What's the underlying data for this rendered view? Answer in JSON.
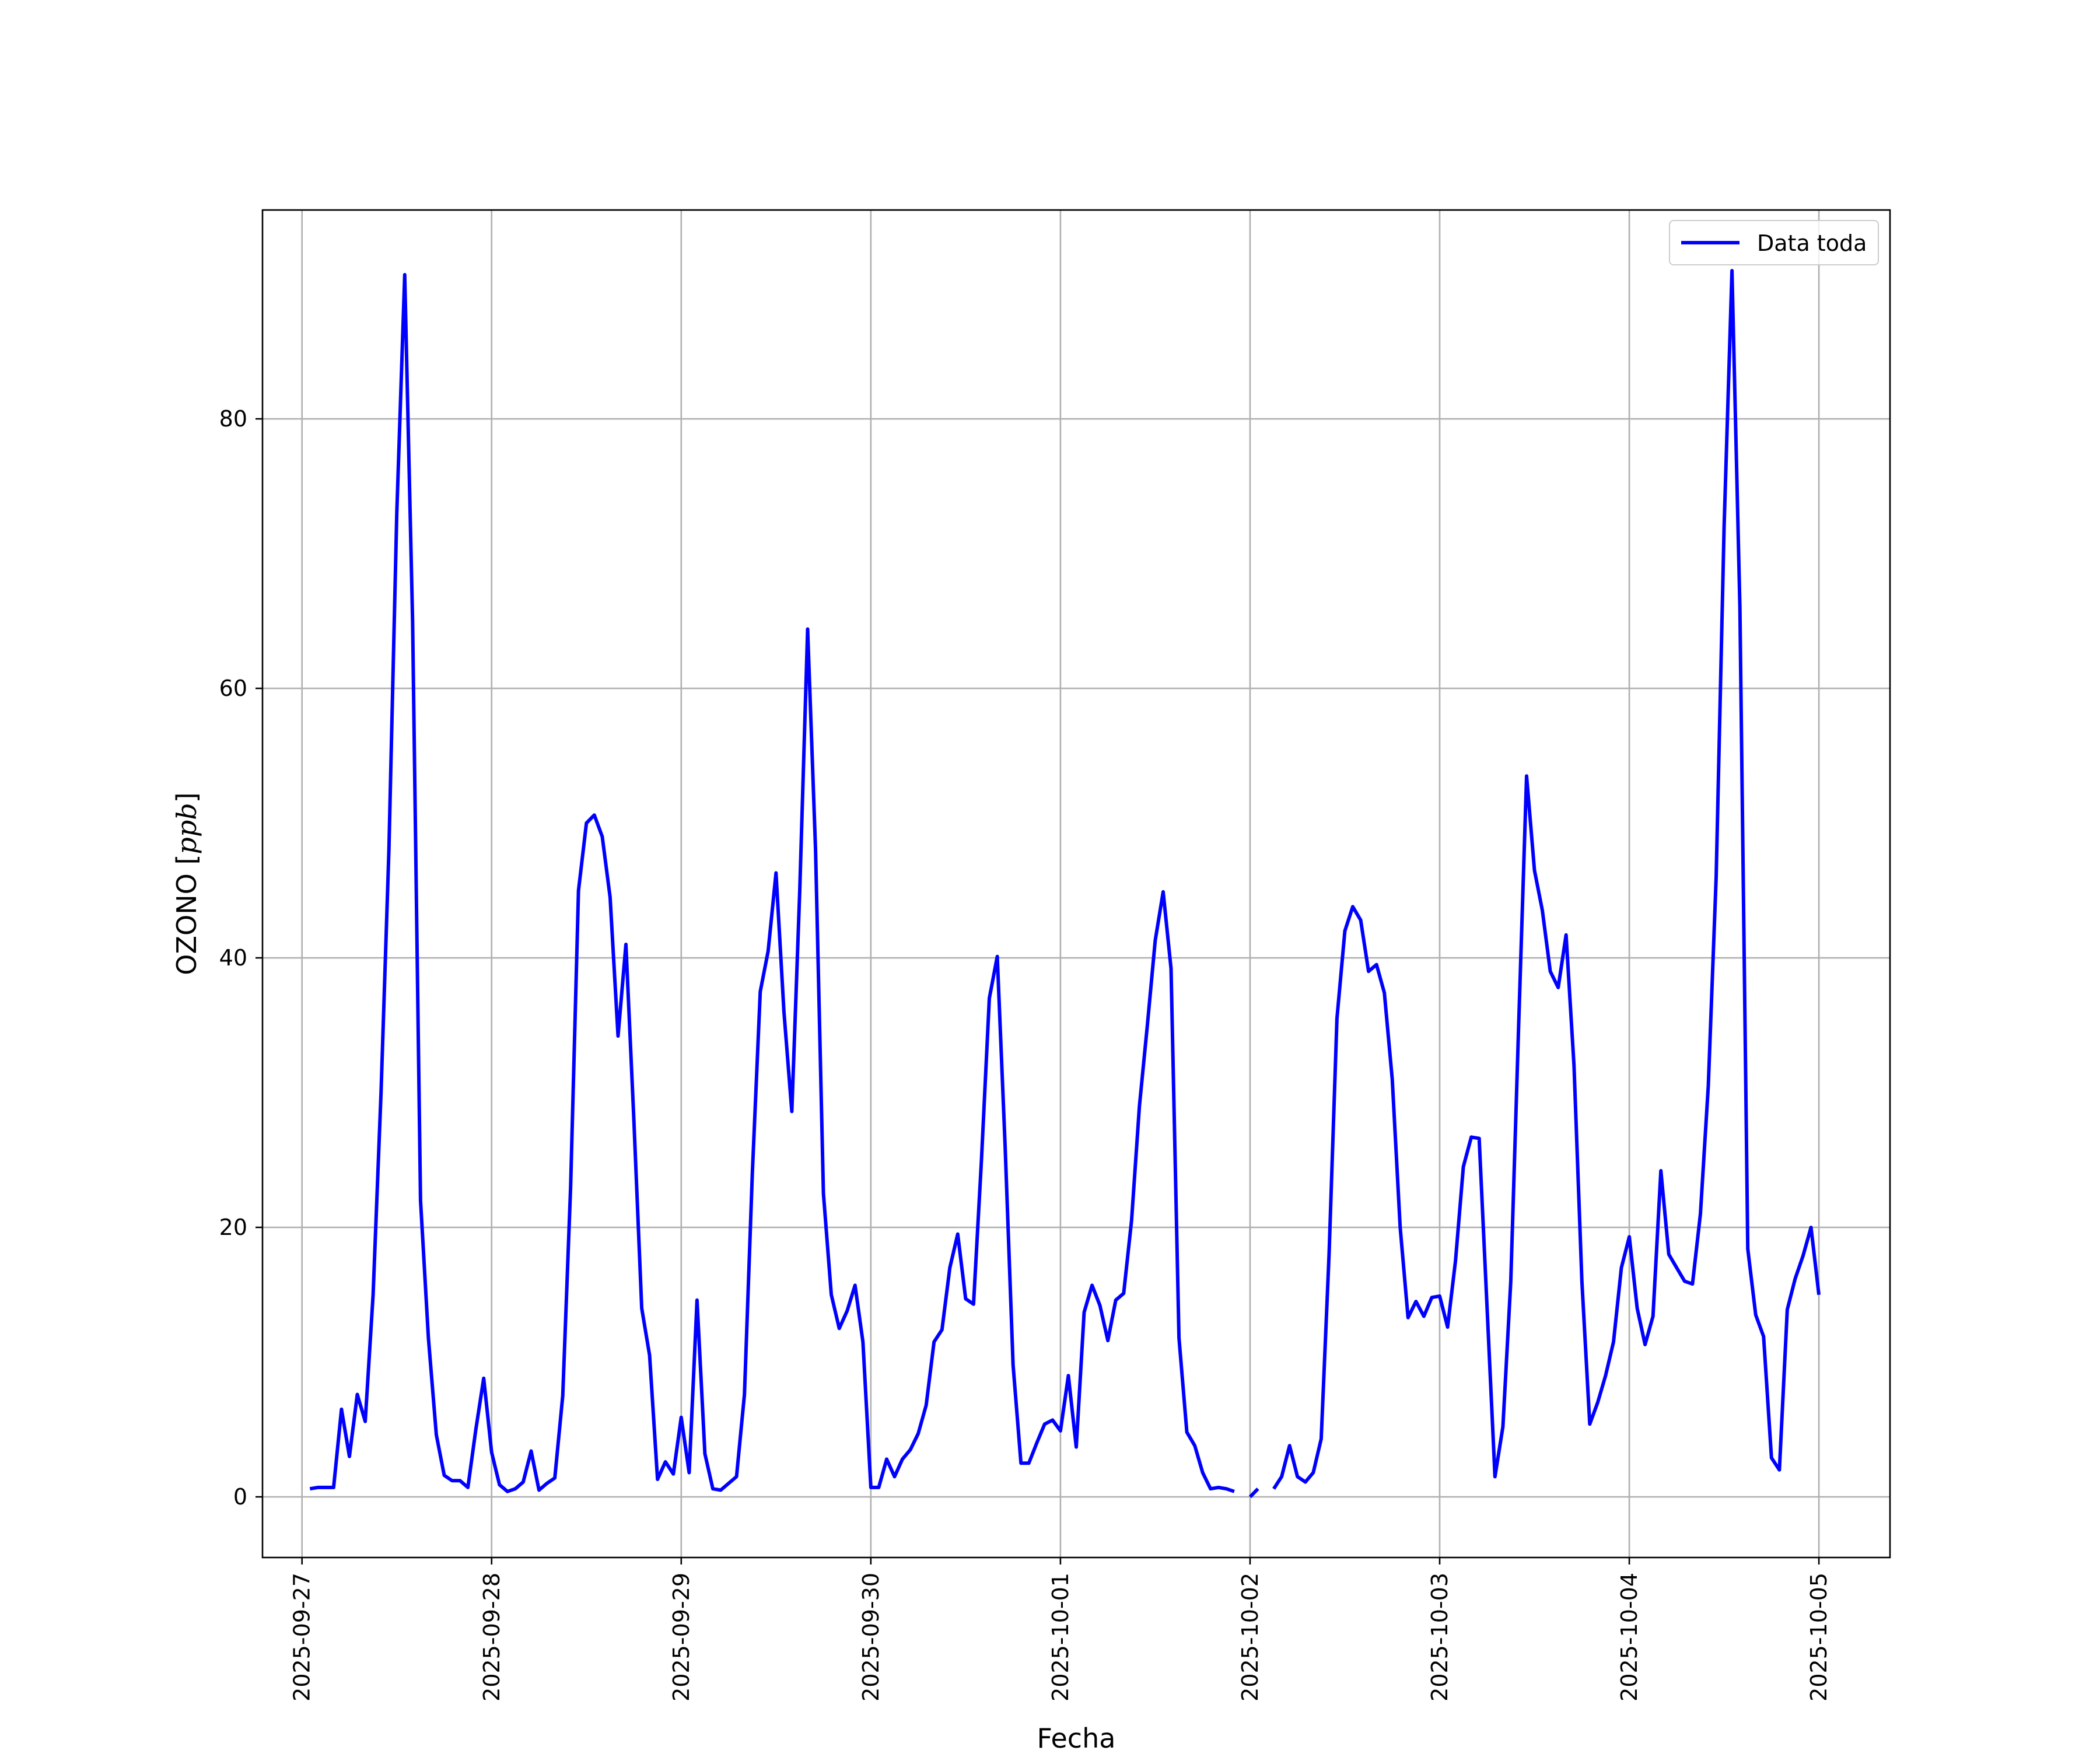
{
  "chart_data": {
    "type": "line",
    "xlabel": "Fecha",
    "ylabel_text": "OZONO [",
    "ylabel_unit": "ppb",
    "ylabel_close": "]",
    "x_ticks": [
      "2025-09-27",
      "2025-09-28",
      "2025-09-29",
      "2025-09-30",
      "2025-10-01",
      "2025-10-02",
      "2025-10-03",
      "2025-10-04",
      "2025-10-05"
    ],
    "y_ticks": [
      0,
      20,
      40,
      60,
      80
    ],
    "xlim": [
      "2025-09-26T19:00",
      "2025-10-05T09:00"
    ],
    "ylim": [
      -4.5,
      95.5
    ],
    "grid": true,
    "legend_position": "top-right",
    "line_color": "#0000ff",
    "series": [
      {
        "name": "Data toda",
        "color": "#0000ff",
        "points": [
          [
            "2025-09-27T01:00",
            0.6
          ],
          [
            "2025-09-27T02:00",
            0.7
          ],
          [
            "2025-09-27T03:00",
            0.7
          ],
          [
            "2025-09-27T04:00",
            0.7
          ],
          [
            "2025-09-27T05:00",
            6.5
          ],
          [
            "2025-09-27T06:00",
            3.0
          ],
          [
            "2025-09-27T07:00",
            7.6
          ],
          [
            "2025-09-27T08:00",
            5.6
          ],
          [
            "2025-09-27T09:00",
            15.0
          ],
          [
            "2025-09-27T10:00",
            30.0
          ],
          [
            "2025-09-27T11:00",
            48.0
          ],
          [
            "2025-09-27T12:00",
            73.0
          ],
          [
            "2025-09-27T13:00",
            90.7
          ],
          [
            "2025-09-27T14:00",
            65.0
          ],
          [
            "2025-09-27T15:00",
            22.0
          ],
          [
            "2025-09-27T16:00",
            11.8
          ],
          [
            "2025-09-27T17:00",
            4.6
          ],
          [
            "2025-09-27T18:00",
            1.6
          ],
          [
            "2025-09-27T19:00",
            1.2
          ],
          [
            "2025-09-27T20:00",
            1.2
          ],
          [
            "2025-09-27T21:00",
            0.7
          ],
          [
            "2025-09-27T22:00",
            5.0
          ],
          [
            "2025-09-27T23:00",
            8.8
          ],
          [
            "2025-09-28T00:00",
            3.3
          ],
          [
            "2025-09-28T01:00",
            0.9
          ],
          [
            "2025-09-28T02:00",
            0.4
          ],
          [
            "2025-09-28T03:00",
            0.6
          ],
          [
            "2025-09-28T04:00",
            1.1
          ],
          [
            "2025-09-28T05:00",
            3.4
          ],
          [
            "2025-09-28T06:00",
            0.5
          ],
          [
            "2025-09-28T07:00",
            1.0
          ],
          [
            "2025-09-28T08:00",
            1.4
          ],
          [
            "2025-09-28T09:00",
            7.5
          ],
          [
            "2025-09-28T10:00",
            23.0
          ],
          [
            "2025-09-28T11:00",
            45.0
          ],
          [
            "2025-09-28T12:00",
            50.0
          ],
          [
            "2025-09-28T13:00",
            50.6
          ],
          [
            "2025-09-28T14:00",
            49.0
          ],
          [
            "2025-09-28T15:00",
            44.5
          ],
          [
            "2025-09-28T16:00",
            34.2
          ],
          [
            "2025-09-28T17:00",
            41.0
          ],
          [
            "2025-09-28T18:00",
            28.0
          ],
          [
            "2025-09-28T19:00",
            14.0
          ],
          [
            "2025-09-28T20:00",
            10.5
          ],
          [
            "2025-09-28T21:00",
            1.3
          ],
          [
            "2025-09-28T22:00",
            2.6
          ],
          [
            "2025-09-28T23:00",
            1.7
          ],
          [
            "2025-09-29T00:00",
            5.9
          ],
          [
            "2025-09-29T01:00",
            1.8
          ],
          [
            "2025-09-29T02:00",
            14.6
          ],
          [
            "2025-09-29T03:00",
            3.2
          ],
          [
            "2025-09-29T04:00",
            0.6
          ],
          [
            "2025-09-29T05:00",
            0.5
          ],
          [
            "2025-09-29T06:00",
            1.0
          ],
          [
            "2025-09-29T07:00",
            1.5
          ],
          [
            "2025-09-29T08:00",
            7.6
          ],
          [
            "2025-09-29T09:00",
            24.0
          ],
          [
            "2025-09-29T10:00",
            37.5
          ],
          [
            "2025-09-29T11:00",
            40.5
          ],
          [
            "2025-09-29T12:00",
            46.3
          ],
          [
            "2025-09-29T13:00",
            36.0
          ],
          [
            "2025-09-29T14:00",
            28.6
          ],
          [
            "2025-09-29T15:00",
            45.0
          ],
          [
            "2025-09-29T16:00",
            64.4
          ],
          [
            "2025-09-29T17:00",
            48.0
          ],
          [
            "2025-09-29T18:00",
            22.5
          ],
          [
            "2025-09-29T19:00",
            15.0
          ],
          [
            "2025-09-29T20:00",
            12.5
          ],
          [
            "2025-09-29T21:00",
            13.8
          ],
          [
            "2025-09-29T22:00",
            15.7
          ],
          [
            "2025-09-29T23:00",
            11.5
          ],
          [
            "2025-09-30T00:00",
            0.7
          ],
          [
            "2025-09-30T01:00",
            0.7
          ],
          [
            "2025-09-30T02:00",
            2.8
          ],
          [
            "2025-09-30T03:00",
            1.5
          ],
          [
            "2025-09-30T04:00",
            2.8
          ],
          [
            "2025-09-30T05:00",
            3.5
          ],
          [
            "2025-09-30T06:00",
            4.7
          ],
          [
            "2025-09-30T07:00",
            6.8
          ],
          [
            "2025-09-30T08:00",
            11.5
          ],
          [
            "2025-09-30T09:00",
            12.4
          ],
          [
            "2025-09-30T10:00",
            17.0
          ],
          [
            "2025-09-30T11:00",
            19.5
          ],
          [
            "2025-09-30T12:00",
            14.7
          ],
          [
            "2025-09-30T13:00",
            14.3
          ],
          [
            "2025-09-30T14:00",
            25.0
          ],
          [
            "2025-09-30T15:00",
            37.0
          ],
          [
            "2025-09-30T16:00",
            40.1
          ],
          [
            "2025-09-30T17:00",
            26.0
          ],
          [
            "2025-09-30T18:00",
            9.8
          ],
          [
            "2025-09-30T19:00",
            2.5
          ],
          [
            "2025-09-30T20:00",
            2.5
          ],
          [
            "2025-09-30T21:00",
            4.0
          ],
          [
            "2025-09-30T22:00",
            5.4
          ],
          [
            "2025-09-30T23:00",
            5.7
          ],
          [
            "2025-10-01T00:00",
            4.9
          ],
          [
            "2025-10-01T01:00",
            9.0
          ],
          [
            "2025-10-01T02:00",
            3.7
          ],
          [
            "2025-10-01T03:00",
            13.7
          ],
          [
            "2025-10-01T04:00",
            15.7
          ],
          [
            "2025-10-01T05:00",
            14.2
          ],
          [
            "2025-10-01T06:00",
            11.6
          ],
          [
            "2025-10-01T07:00",
            14.6
          ],
          [
            "2025-10-01T08:00",
            15.1
          ],
          [
            "2025-10-01T09:00",
            20.5
          ],
          [
            "2025-10-01T10:00",
            29.0
          ],
          [
            "2025-10-01T11:00",
            35.0
          ],
          [
            "2025-10-01T12:00",
            41.3
          ],
          [
            "2025-10-01T13:00",
            44.9
          ],
          [
            "2025-10-01T14:00",
            39.2
          ],
          [
            "2025-10-01T15:00",
            11.8
          ],
          [
            "2025-10-01T16:00",
            4.8
          ],
          [
            "2025-10-01T17:00",
            3.8
          ],
          [
            "2025-10-01T18:00",
            1.8
          ],
          [
            "2025-10-01T19:00",
            0.6
          ],
          [
            "2025-10-01T20:00",
            0.7
          ],
          [
            "2025-10-01T21:00",
            0.6
          ],
          [
            "2025-10-01T22:00",
            0.4
          ],
          [
            "2025-10-01T23:00",
            null
          ],
          [
            "2025-10-02T00:00",
            0.0
          ],
          [
            "2025-10-02T01:00",
            0.6
          ],
          [
            "2025-10-02T02:00",
            null
          ],
          [
            "2025-10-02T03:00",
            0.6
          ],
          [
            "2025-10-02T04:00",
            1.5
          ],
          [
            "2025-10-02T05:00",
            3.8
          ],
          [
            "2025-10-02T06:00",
            1.5
          ],
          [
            "2025-10-02T07:00",
            1.1
          ],
          [
            "2025-10-02T08:00",
            1.8
          ],
          [
            "2025-10-02T09:00",
            4.3
          ],
          [
            "2025-10-02T10:00",
            18.0
          ],
          [
            "2025-10-02T11:00",
            35.5
          ],
          [
            "2025-10-02T12:00",
            42.0
          ],
          [
            "2025-10-02T13:00",
            43.8
          ],
          [
            "2025-10-02T14:00",
            42.8
          ],
          [
            "2025-10-02T15:00",
            39.0
          ],
          [
            "2025-10-02T16:00",
            39.5
          ],
          [
            "2025-10-02T17:00",
            37.4
          ],
          [
            "2025-10-02T18:00",
            31.0
          ],
          [
            "2025-10-02T19:00",
            20.0
          ],
          [
            "2025-10-02T20:00",
            13.3
          ],
          [
            "2025-10-02T21:00",
            14.5
          ],
          [
            "2025-10-02T22:00",
            13.4
          ],
          [
            "2025-10-02T23:00",
            14.8
          ],
          [
            "2025-10-03T00:00",
            14.9
          ],
          [
            "2025-10-03T01:00",
            12.6
          ],
          [
            "2025-10-03T02:00",
            17.5
          ],
          [
            "2025-10-03T03:00",
            24.5
          ],
          [
            "2025-10-03T04:00",
            26.7
          ],
          [
            "2025-10-03T05:00",
            26.6
          ],
          [
            "2025-10-03T06:00",
            14.0
          ],
          [
            "2025-10-03T07:00",
            1.5
          ],
          [
            "2025-10-03T08:00",
            5.2
          ],
          [
            "2025-10-03T09:00",
            16.0
          ],
          [
            "2025-10-03T10:00",
            35.0
          ],
          [
            "2025-10-03T11:00",
            53.5
          ],
          [
            "2025-10-03T12:00",
            46.5
          ],
          [
            "2025-10-03T13:00",
            43.5
          ],
          [
            "2025-10-03T14:00",
            39.0
          ],
          [
            "2025-10-03T15:00",
            37.8
          ],
          [
            "2025-10-03T16:00",
            41.7
          ],
          [
            "2025-10-03T17:00",
            32.0
          ],
          [
            "2025-10-03T18:00",
            16.0
          ],
          [
            "2025-10-03T19:00",
            5.4
          ],
          [
            "2025-10-03T20:00",
            7.0
          ],
          [
            "2025-10-03T21:00",
            9.0
          ],
          [
            "2025-10-03T22:00",
            11.5
          ],
          [
            "2025-10-03T23:00",
            17.0
          ],
          [
            "2025-10-04T00:00",
            19.3
          ],
          [
            "2025-10-04T01:00",
            14.0
          ],
          [
            "2025-10-04T02:00",
            11.3
          ],
          [
            "2025-10-04T03:00",
            13.4
          ],
          [
            "2025-10-04T04:00",
            24.2
          ],
          [
            "2025-10-04T05:00",
            18.0
          ],
          [
            "2025-10-04T06:00",
            17.0
          ],
          [
            "2025-10-04T07:00",
            16.0
          ],
          [
            "2025-10-04T08:00",
            15.8
          ],
          [
            "2025-10-04T09:00",
            21.0
          ],
          [
            "2025-10-04T10:00",
            30.5
          ],
          [
            "2025-10-04T11:00",
            46.0
          ],
          [
            "2025-10-04T12:00",
            72.0
          ],
          [
            "2025-10-04T13:00",
            91.0
          ],
          [
            "2025-10-04T14:00",
            66.0
          ],
          [
            "2025-10-04T15:00",
            18.4
          ],
          [
            "2025-10-04T16:00",
            13.5
          ],
          [
            "2025-10-04T17:00",
            11.9
          ],
          [
            "2025-10-04T18:00",
            2.9
          ],
          [
            "2025-10-04T19:00",
            2.0
          ],
          [
            "2025-10-04T20:00",
            13.9
          ],
          [
            "2025-10-04T21:00",
            16.2
          ],
          [
            "2025-10-04T22:00",
            17.9
          ],
          [
            "2025-10-04T23:00",
            20.0
          ],
          [
            "2025-10-05T00:00",
            15.0
          ]
        ]
      }
    ]
  }
}
